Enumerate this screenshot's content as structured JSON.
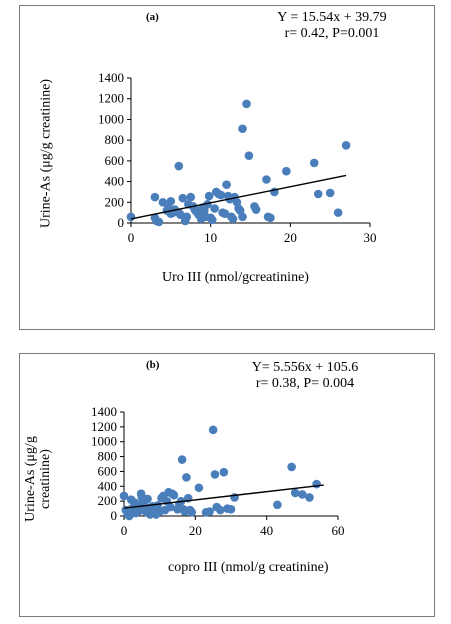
{
  "chart_data": [
    {
      "type": "scatter",
      "panel_label": "(a)",
      "equation": "Y = 15.54x + 39.79",
      "stats": "r= 0.42, P=0.001",
      "xlabel": "Uro III  (nmol/gcreatinine)",
      "ylabel": "Urine-As (μg/g creatinine)",
      "xlim": [
        0,
        30
      ],
      "ylim": [
        0,
        1400
      ],
      "xticks": [
        0,
        10,
        20,
        30
      ],
      "yticks": [
        0,
        200,
        400,
        600,
        800,
        1000,
        1200,
        1400
      ],
      "point_color": "#4a7ebb",
      "trendline": {
        "slope": 15.54,
        "intercept": 39.79,
        "x_range": [
          0,
          27
        ]
      },
      "points": [
        [
          0,
          60
        ],
        [
          3,
          250
        ],
        [
          3,
          50
        ],
        [
          3.2,
          20
        ],
        [
          3.5,
          10
        ],
        [
          4,
          200
        ],
        [
          4.5,
          120
        ],
        [
          4.7,
          150
        ],
        [
          5,
          210
        ],
        [
          5,
          90
        ],
        [
          5.3,
          100
        ],
        [
          5.5,
          130
        ],
        [
          6,
          550
        ],
        [
          6,
          100
        ],
        [
          6.2,
          80
        ],
        [
          6.5,
          240
        ],
        [
          6.8,
          20
        ],
        [
          7,
          60
        ],
        [
          7.2,
          180
        ],
        [
          7.5,
          250
        ],
        [
          7.8,
          160
        ],
        [
          8,
          130
        ],
        [
          8.2,
          110
        ],
        [
          8.5,
          90
        ],
        [
          8.5,
          80
        ],
        [
          8.8,
          40
        ],
        [
          9,
          150
        ],
        [
          9.2,
          120
        ],
        [
          9.4,
          60
        ],
        [
          9.6,
          180
        ],
        [
          9.8,
          260
        ],
        [
          10,
          50
        ],
        [
          10.2,
          30
        ],
        [
          10.5,
          140
        ],
        [
          10.7,
          300
        ],
        [
          11,
          280
        ],
        [
          11.3,
          270
        ],
        [
          11.5,
          100
        ],
        [
          11.8,
          90
        ],
        [
          12,
          370
        ],
        [
          12.2,
          260
        ],
        [
          12.4,
          230
        ],
        [
          12.6,
          60
        ],
        [
          12.8,
          40
        ],
        [
          13,
          250
        ],
        [
          13.3,
          200
        ],
        [
          13.5,
          140
        ],
        [
          13.7,
          120
        ],
        [
          14,
          910
        ],
        [
          14,
          60
        ],
        [
          14.5,
          1150
        ],
        [
          14.8,
          650
        ],
        [
          15.5,
          160
        ],
        [
          15.7,
          130
        ],
        [
          17,
          420
        ],
        [
          17.2,
          60
        ],
        [
          17.5,
          50
        ],
        [
          18,
          300
        ],
        [
          19.5,
          500
        ],
        [
          23,
          580
        ],
        [
          23.5,
          280
        ],
        [
          25,
          290
        ],
        [
          26,
          100
        ],
        [
          27,
          750
        ]
      ]
    },
    {
      "type": "scatter",
      "panel_label": "(b)",
      "equation": "Y= 5.556x + 105.6",
      "stats": "r= 0.38, P= 0.004",
      "xlabel": "copro III (nmol/g creatinine)",
      "ylabel_line1": "Urine-As (μg/g",
      "ylabel_line2": "creatinine)",
      "xlim": [
        0,
        60
      ],
      "ylim": [
        0,
        1400
      ],
      "xticks": [
        0,
        20,
        40,
        60
      ],
      "yticks": [
        0,
        200,
        400,
        600,
        800,
        1000,
        1200,
        1400
      ],
      "point_color": "#4a7ebb",
      "trendline": {
        "slope": 5.556,
        "intercept": 105.6,
        "x_range": [
          0,
          56
        ]
      },
      "points": [
        [
          0,
          270
        ],
        [
          0.5,
          80
        ],
        [
          1,
          20
        ],
        [
          1.2,
          10
        ],
        [
          1.5,
          0
        ],
        [
          2,
          220
        ],
        [
          2.2,
          100
        ],
        [
          2.5,
          60
        ],
        [
          3,
          180
        ],
        [
          3.3,
          40
        ],
        [
          3.6,
          130
        ],
        [
          4,
          90
        ],
        [
          4.3,
          70
        ],
        [
          4.8,
          300
        ],
        [
          5,
          250
        ],
        [
          5.3,
          200
        ],
        [
          5.6,
          150
        ],
        [
          6,
          120
        ],
        [
          6.3,
          50
        ],
        [
          6.6,
          230
        ],
        [
          7,
          100
        ],
        [
          7.3,
          20
        ],
        [
          7.6,
          60
        ],
        [
          8,
          130
        ],
        [
          8.5,
          90
        ],
        [
          9,
          20
        ],
        [
          9.4,
          140
        ],
        [
          10,
          60
        ],
        [
          10.5,
          240
        ],
        [
          11,
          270
        ],
        [
          11.5,
          80
        ],
        [
          12,
          200
        ],
        [
          12.5,
          320
        ],
        [
          13,
          120
        ],
        [
          13.5,
          300
        ],
        [
          14,
          280
        ],
        [
          15,
          90
        ],
        [
          15.5,
          160
        ],
        [
          16,
          200
        ],
        [
          16.3,
          760
        ],
        [
          16.7,
          90
        ],
        [
          17,
          60
        ],
        [
          17.5,
          520
        ],
        [
          18,
          240
        ],
        [
          18.5,
          80
        ],
        [
          19,
          50
        ],
        [
          21,
          380
        ],
        [
          23,
          50
        ],
        [
          24,
          60
        ],
        [
          25,
          1160
        ],
        [
          25.5,
          560
        ],
        [
          26,
          120
        ],
        [
          27,
          80
        ],
        [
          28,
          590
        ],
        [
          29,
          100
        ],
        [
          30,
          90
        ],
        [
          31,
          250
        ],
        [
          43,
          150
        ],
        [
          47,
          660
        ],
        [
          48,
          310
        ],
        [
          50,
          290
        ],
        [
          52,
          250
        ],
        [
          54,
          430
        ]
      ]
    }
  ]
}
